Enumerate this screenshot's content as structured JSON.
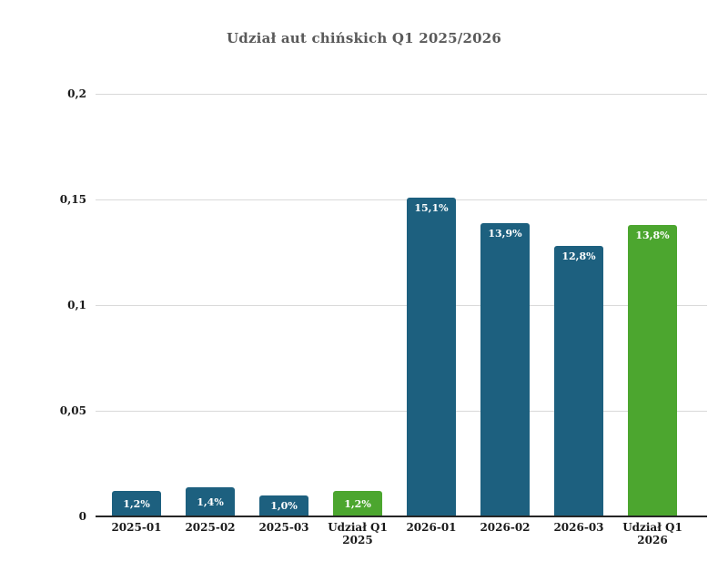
{
  "title": "Udział aut chińskich Q1 2025/2026",
  "colors": {
    "bar_blue": "#1d607f",
    "bar_green": "#4ca62f",
    "grid": "#d9d9d9",
    "axis": "#262626",
    "title_text": "#595959",
    "tick_text": "#1a1a1a",
    "value_text": "#ffffff",
    "background": "#ffffff"
  },
  "chart_data": {
    "type": "bar",
    "title": "Udział aut chińskich Q1 2025/2026",
    "categories": [
      "2025-01",
      "2025-02",
      "2025-03",
      "Udział Q1 2025",
      "2026-01",
      "2026-02",
      "2026-03",
      "Udział Q1 2026"
    ],
    "values": [
      0.012,
      0.014,
      0.01,
      0.012,
      0.151,
      0.139,
      0.128,
      0.138
    ],
    "value_labels": [
      "1,2%",
      "1,4%",
      "1,0%",
      "1,2%",
      "15,1%",
      "13,9%",
      "12,8%",
      "13,8%"
    ],
    "bar_colors": [
      "blue",
      "blue",
      "blue",
      "green",
      "blue",
      "blue",
      "blue",
      "green"
    ],
    "y_ticks": [
      "0",
      "0,05",
      "0,1",
      "0,15",
      "0,2"
    ],
    "y_tick_values": [
      0,
      0.05,
      0.1,
      0.15,
      0.2
    ],
    "ylim": [
      0,
      0.2
    ],
    "xlabel": "",
    "ylabel": "",
    "grid": true,
    "legend": "none"
  }
}
